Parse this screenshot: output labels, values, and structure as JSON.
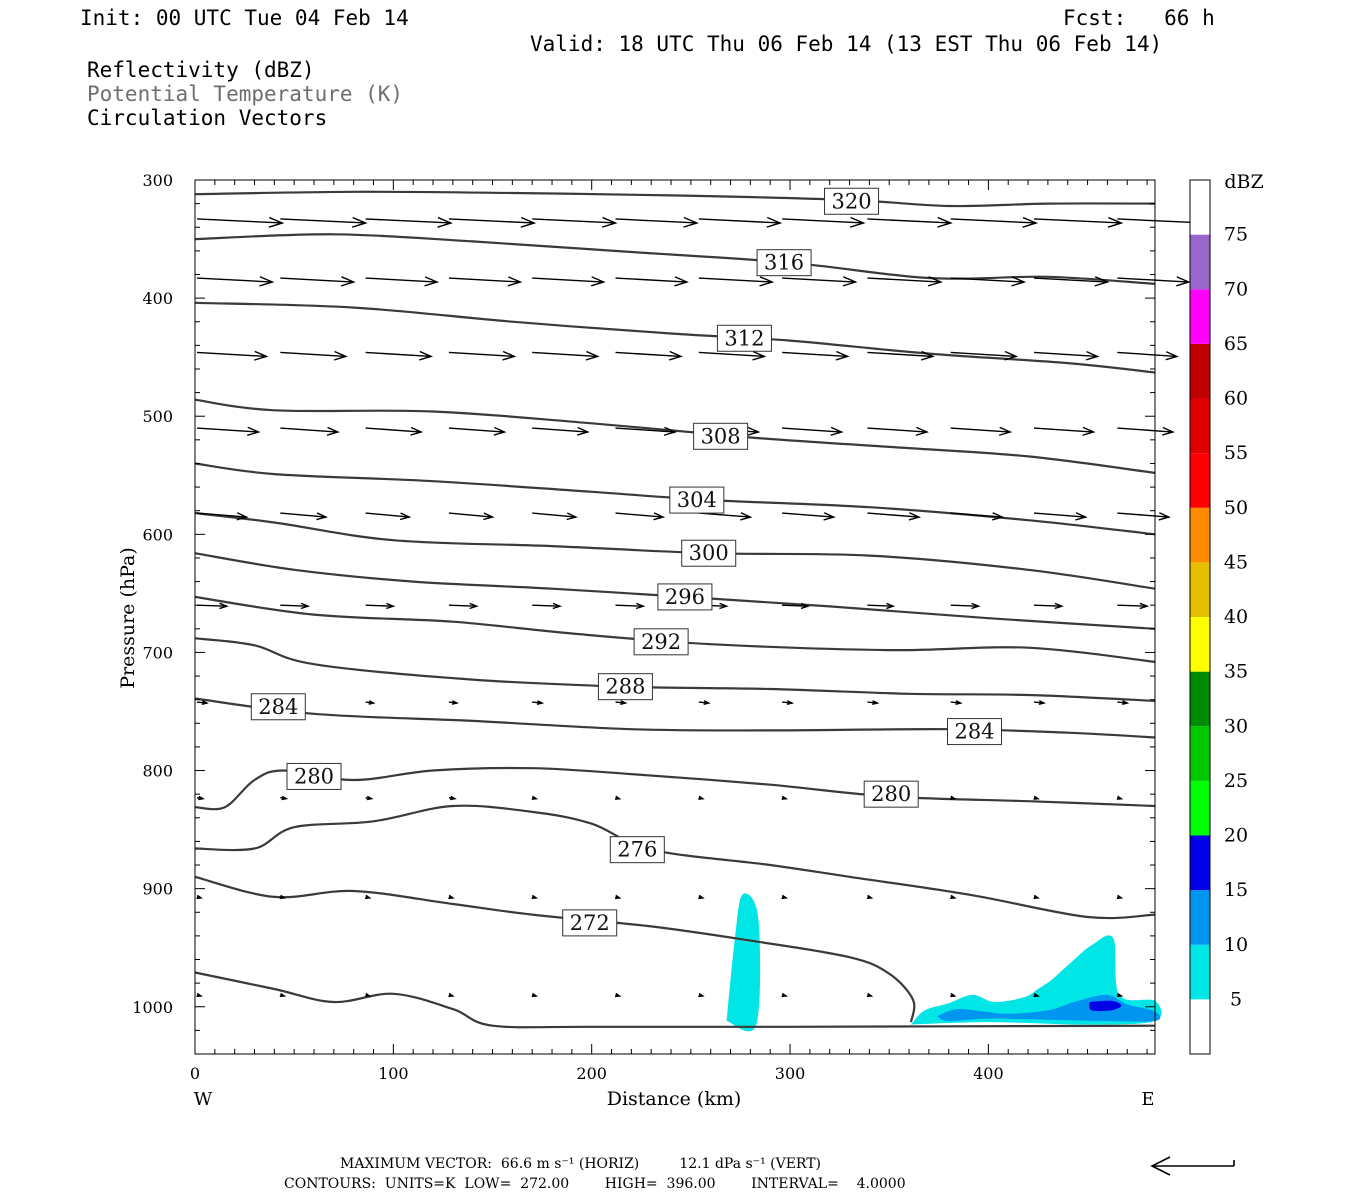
{
  "header": {
    "init": "Init: 00 UTC Tue 04 Feb 14",
    "fcst": "Fcst:   66 h",
    "valid": "Valid: 18 UTC Thu 06 Feb 14 (13 EST Thu 06 Feb 14)",
    "field1": "Reflectivity (dBZ)",
    "field2": "Potential Temperature (K)",
    "field3": "Circulation Vectors"
  },
  "footer": {
    "maxvec": "MAXIMUM VECTOR:  66.6 m s⁻¹ (HORIZ)         12.1 dPa s⁻¹ (VERT)",
    "contours": "CONTOURS:  UNITS=K  LOW=  272.00        HIGH=  396.00        INTERVAL=    4.0000"
  },
  "colors": {
    "contour": "#3a3a3a",
    "refl_5": "#00e6e6",
    "refl_10": "#0096f0",
    "refl_15": "#0000e6"
  },
  "chart_data": {
    "type": "contour",
    "xlabel": "Distance (km)",
    "ylabel": "Pressure (hPa)",
    "xlim": [
      0,
      484
    ],
    "ylim": [
      1040,
      300
    ],
    "xticks": [
      0,
      100,
      200,
      300,
      400
    ],
    "yticks": [
      300,
      400,
      500,
      600,
      700,
      800,
      900,
      1000
    ],
    "left_label": "W",
    "right_label": "E",
    "colorbar": {
      "unit": "dBZ",
      "levels": [
        5,
        10,
        15,
        20,
        25,
        30,
        35,
        40,
        45,
        50,
        55,
        60,
        65,
        70,
        75
      ],
      "colors": [
        "#00e6e6",
        "#0096f0",
        "#0000e6",
        "#00ff00",
        "#00c800",
        "#008c00",
        "#ffff00",
        "#e6be00",
        "#ff8c00",
        "#ff0000",
        "#e10000",
        "#c00000",
        "#ff00ff",
        "#9966cc",
        "#ffffff"
      ]
    },
    "contour_lines": [
      {
        "level": 320,
        "label": "320",
        "label_at": [
          331,
          318
        ],
        "points": [
          [
            0,
            312
          ],
          [
            80,
            310
          ],
          [
            160,
            311
          ],
          [
            240,
            313
          ],
          [
            330,
            317
          ],
          [
            380,
            322
          ],
          [
            430,
            320
          ],
          [
            484,
            320
          ]
        ]
      },
      {
        "level": 316,
        "label": "316",
        "label_at": [
          297,
          370
        ],
        "points": [
          [
            0,
            350
          ],
          [
            70,
            346
          ],
          [
            140,
            352
          ],
          [
            220,
            361
          ],
          [
            300,
            370
          ],
          [
            370,
            383
          ],
          [
            430,
            382
          ],
          [
            484,
            388
          ]
        ]
      },
      {
        "level": 312,
        "label": "312",
        "label_at": [
          277,
          434
        ],
        "points": [
          [
            0,
            404
          ],
          [
            80,
            408
          ],
          [
            160,
            420
          ],
          [
            240,
            430
          ],
          [
            300,
            436
          ],
          [
            370,
            447
          ],
          [
            440,
            455
          ],
          [
            484,
            463
          ]
        ]
      },
      {
        "level": 308,
        "label": "308",
        "label_at": [
          265,
          517
        ],
        "points": [
          [
            0,
            486
          ],
          [
            40,
            495
          ],
          [
            120,
            496
          ],
          [
            200,
            506
          ],
          [
            280,
            518
          ],
          [
            350,
            526
          ],
          [
            420,
            534
          ],
          [
            484,
            548
          ]
        ]
      },
      {
        "level": 304,
        "label": "304",
        "label_at": [
          253,
          571
        ],
        "points": [
          [
            0,
            540
          ],
          [
            40,
            549
          ],
          [
            120,
            555
          ],
          [
            200,
            564
          ],
          [
            260,
            571
          ],
          [
            340,
            577
          ],
          [
            420,
            588
          ],
          [
            484,
            600
          ]
        ]
      },
      {
        "level": 300,
        "label": "300",
        "label_at": [
          259,
          616
        ],
        "points": [
          [
            0,
            582
          ],
          [
            40,
            590
          ],
          [
            100,
            605
          ],
          [
            180,
            610
          ],
          [
            260,
            616
          ],
          [
            340,
            618
          ],
          [
            420,
            630
          ],
          [
            484,
            646
          ]
        ]
      },
      {
        "level": 296,
        "label": "296",
        "label_at": [
          247,
          653
        ],
        "points": [
          [
            0,
            616
          ],
          [
            50,
            630
          ],
          [
            110,
            640
          ],
          [
            180,
            646
          ],
          [
            247,
            653
          ],
          [
            320,
            661
          ],
          [
            400,
            671
          ],
          [
            484,
            680
          ]
        ]
      },
      {
        "level": 292,
        "label": "292",
        "label_at": [
          235,
          691
        ],
        "points": [
          [
            0,
            653
          ],
          [
            60,
            668
          ],
          [
            130,
            674
          ],
          [
            190,
            684
          ],
          [
            260,
            693
          ],
          [
            350,
            698
          ],
          [
            420,
            696
          ],
          [
            484,
            708
          ]
        ]
      },
      {
        "level": 288,
        "label": "288",
        "label_at": [
          217,
          729
        ],
        "points": [
          [
            0,
            688
          ],
          [
            30,
            694
          ],
          [
            60,
            710
          ],
          [
            140,
            723
          ],
          [
            217,
            729
          ],
          [
            290,
            731
          ],
          [
            360,
            735
          ],
          [
            420,
            736
          ],
          [
            484,
            741
          ]
        ]
      },
      {
        "level": 284,
        "label": "284",
        "label_at": [
          42,
          746
        ],
        "points": [
          [
            0,
            739
          ],
          [
            60,
            752
          ],
          [
            140,
            758
          ],
          [
            220,
            765
          ],
          [
            290,
            766
          ],
          [
            380,
            765
          ],
          [
            440,
            768
          ],
          [
            484,
            772
          ]
        ]
      },
      {
        "level": 284,
        "label": "284",
        "label_at": [
          393,
          767
        ],
        "points": []
      },
      {
        "level": 280,
        "label": "280",
        "label_at": [
          60,
          805
        ],
        "points": [
          [
            0,
            831
          ],
          [
            15,
            831
          ],
          [
            30,
            808
          ],
          [
            45,
            800
          ],
          [
            80,
            808
          ],
          [
            120,
            800
          ],
          [
            170,
            798
          ],
          [
            220,
            803
          ],
          [
            290,
            812
          ],
          [
            350,
            822
          ],
          [
            420,
            826
          ],
          [
            484,
            830
          ]
        ]
      },
      {
        "level": 280,
        "label": "280",
        "label_at": [
          351,
          820
        ],
        "points": []
      },
      {
        "level": 276,
        "label": "276",
        "label_at": [
          223,
          867
        ],
        "points": [
          [
            0,
            866
          ],
          [
            30,
            866
          ],
          [
            50,
            848
          ],
          [
            90,
            843
          ],
          [
            130,
            830
          ],
          [
            170,
            835
          ],
          [
            200,
            845
          ],
          [
            230,
            867
          ],
          [
            290,
            880
          ],
          [
            330,
            890
          ],
          [
            390,
            905
          ],
          [
            450,
            924
          ],
          [
            484,
            922
          ]
        ]
      },
      {
        "level": 272,
        "label": "272",
        "label_at": [
          199,
          929
        ],
        "points": [
          [
            0,
            890
          ],
          [
            40,
            907
          ],
          [
            80,
            902
          ],
          [
            130,
            913
          ],
          [
            170,
            922
          ],
          [
            230,
            932
          ],
          [
            280,
            944
          ],
          [
            330,
            958
          ],
          [
            350,
            972
          ],
          [
            362,
            994
          ],
          [
            361,
            1013
          ]
        ]
      },
      {
        "level": 272,
        "label": "",
        "label_at": [],
        "points": [
          [
            0,
            971
          ],
          [
            40,
            985
          ],
          [
            70,
            996
          ],
          [
            100,
            989
          ],
          [
            130,
            1002
          ],
          [
            150,
            1016
          ],
          [
            200,
            1017
          ],
          [
            300,
            1017
          ],
          [
            484,
            1016
          ]
        ]
      }
    ],
    "reflectivity_areas": [
      {
        "level": 5,
        "points": [
          [
            268,
            1012
          ],
          [
            272,
            945
          ],
          [
            276,
            905
          ],
          [
            284,
            925
          ],
          [
            283,
            1015
          ]
        ]
      },
      {
        "level": 5,
        "points": [
          [
            361,
            1015
          ],
          [
            368,
            1003
          ],
          [
            380,
            997
          ],
          [
            392,
            990
          ],
          [
            403,
            996
          ],
          [
            418,
            992
          ],
          [
            425,
            985
          ],
          [
            432,
            977
          ],
          [
            442,
            962
          ],
          [
            452,
            948
          ],
          [
            463,
            942
          ],
          [
            466,
            990
          ],
          [
            484,
            995
          ],
          [
            484,
            1012
          ],
          [
            450,
            1015
          ],
          [
            400,
            1013
          ]
        ]
      },
      {
        "level": 10,
        "points": [
          [
            374,
            1008
          ],
          [
            384,
            1002
          ],
          [
            398,
            1004
          ],
          [
            410,
            1006
          ],
          [
            430,
            1003
          ],
          [
            445,
            995
          ],
          [
            460,
            990
          ],
          [
            470,
            998
          ],
          [
            484,
            1004
          ],
          [
            484,
            1012
          ],
          [
            456,
            1012
          ],
          [
            430,
            1011
          ],
          [
            400,
            1010
          ],
          [
            380,
            1012
          ]
        ]
      },
      {
        "level": 15,
        "points": [
          [
            451,
            996
          ],
          [
            462,
            995
          ],
          [
            467,
            999
          ],
          [
            462,
            1003
          ],
          [
            452,
            1003
          ]
        ]
      }
    ],
    "circulation_vectors": {
      "rows": [
        {
          "p": 333,
          "x": [
            0,
            42,
            85,
            127,
            169,
            211,
            253,
            295,
            338,
            380,
            422,
            464
          ],
          "len": [
            43,
            43,
            43,
            43,
            42,
            41,
            41,
            41,
            42,
            43,
            44,
            44
          ]
        },
        {
          "p": 383,
          "x": [
            0,
            42,
            85,
            127,
            169,
            211,
            253,
            295,
            338,
            380,
            422,
            464
          ],
          "len": [
            38,
            37,
            36,
            36,
            36,
            36,
            37,
            37,
            37,
            37,
            37,
            36
          ]
        },
        {
          "p": 446,
          "x": [
            0,
            42,
            85,
            127,
            169,
            211,
            253,
            295,
            338,
            380,
            422,
            464
          ],
          "len": [
            35,
            33,
            33,
            33,
            33,
            33,
            33,
            33,
            33,
            33,
            32,
            30
          ]
        },
        {
          "p": 510,
          "x": [
            0,
            42,
            85,
            127,
            169,
            211,
            253,
            295,
            338,
            380,
            422,
            464
          ],
          "len": [
            31,
            29,
            28,
            28,
            28,
            30,
            30,
            30,
            30,
            30,
            30,
            28
          ]
        },
        {
          "p": 582,
          "x": [
            0,
            42,
            85,
            127,
            169,
            211,
            253,
            295,
            338,
            380,
            422,
            464
          ],
          "len": [
            25,
            23,
            22,
            22,
            22,
            24,
            26,
            26,
            26,
            26,
            26,
            26
          ]
        },
        {
          "p": 660,
          "x": [
            0,
            42,
            85,
            127,
            169,
            211,
            253,
            295,
            338,
            380,
            422,
            464
          ],
          "len": [
            15,
            14,
            14,
            14,
            14,
            14,
            14,
            13,
            13,
            14,
            14,
            15
          ]
        },
        {
          "p": 742,
          "x": [
            0,
            42,
            85,
            127,
            169,
            211,
            253,
            295,
            338,
            380,
            422,
            464
          ],
          "len": [
            5,
            4,
            4,
            4,
            5,
            5,
            5,
            5,
            5,
            5,
            5,
            5
          ]
        },
        {
          "p": 823,
          "x": [
            0,
            42,
            85,
            127,
            169,
            211,
            253,
            295,
            338,
            380,
            422,
            464
          ],
          "len": [
            3,
            3,
            3,
            3,
            2,
            2,
            2,
            2,
            2,
            2,
            2,
            2
          ]
        },
        {
          "p": 907,
          "x": [
            0,
            42,
            85,
            127,
            169,
            211,
            253,
            295,
            338,
            380,
            422,
            464
          ],
          "len": [
            2,
            2,
            2,
            2,
            2,
            2,
            2,
            2,
            2,
            2,
            2,
            2
          ]
        },
        {
          "p": 990,
          "x": [
            0,
            42,
            85,
            127,
            169,
            211,
            253,
            295,
            338,
            380,
            422,
            464
          ],
          "len": [
            2,
            2,
            2,
            2,
            2,
            2,
            2,
            2,
            2,
            2,
            2,
            2
          ]
        }
      ]
    }
  }
}
